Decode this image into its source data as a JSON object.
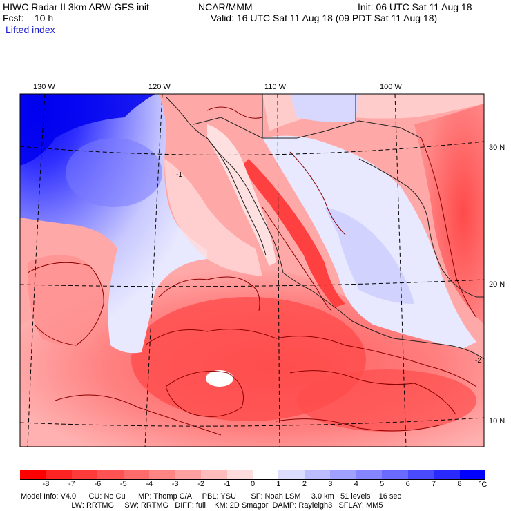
{
  "header": {
    "model_title": "HIWC Radar II 3km ARW-GFS init",
    "org": "NCAR/MMM",
    "init": "Init: 06 UTC Sat 11 Aug 18",
    "forecast": "Fcst:    10 h",
    "valid": "Valid: 16 UTC Sat 11 Aug 18 (09 PDT Sat 11 Aug 18)",
    "field": "Lifted index"
  },
  "map": {
    "lon_labels": [
      "130 W",
      "120 W",
      "110 W",
      "100 W"
    ],
    "lat_labels": [
      "30 N",
      "20 N",
      "10 N"
    ],
    "contour_labels": [
      "-1",
      "-2"
    ]
  },
  "colorbar": {
    "ticks": [
      "-8",
      "-7",
      "-6",
      "-5",
      "-4",
      "-3",
      "-2",
      "-1",
      "0",
      "1",
      "2",
      "3",
      "4",
      "5",
      "6",
      "7",
      "8"
    ],
    "unit": "°C",
    "colors": [
      "#ff0000",
      "#ff2323",
      "#ff3a3a",
      "#ff5252",
      "#ff6a6a",
      "#ff8585",
      "#ffa0a0",
      "#ffbcbc",
      "#ffdcdc",
      "#ffffff",
      "#dcdcff",
      "#bcbcff",
      "#a0a0ff",
      "#8585ff",
      "#6a6aff",
      "#4a4aff",
      "#2a2aff",
      "#0000ff"
    ]
  },
  "footer": {
    "line1": "Model Info: V4.0      CU: No Cu      MP: Thomp C/A     PBL: YSU       SF: Noah LSM     3.0 km   51 levels    16 sec",
    "line2": "                        LW: RRTMG     SW: RRTMG   DIFF: full    KM: 2D Smagor  DAMP: Rayleigh3   SFLAY: MM5"
  }
}
